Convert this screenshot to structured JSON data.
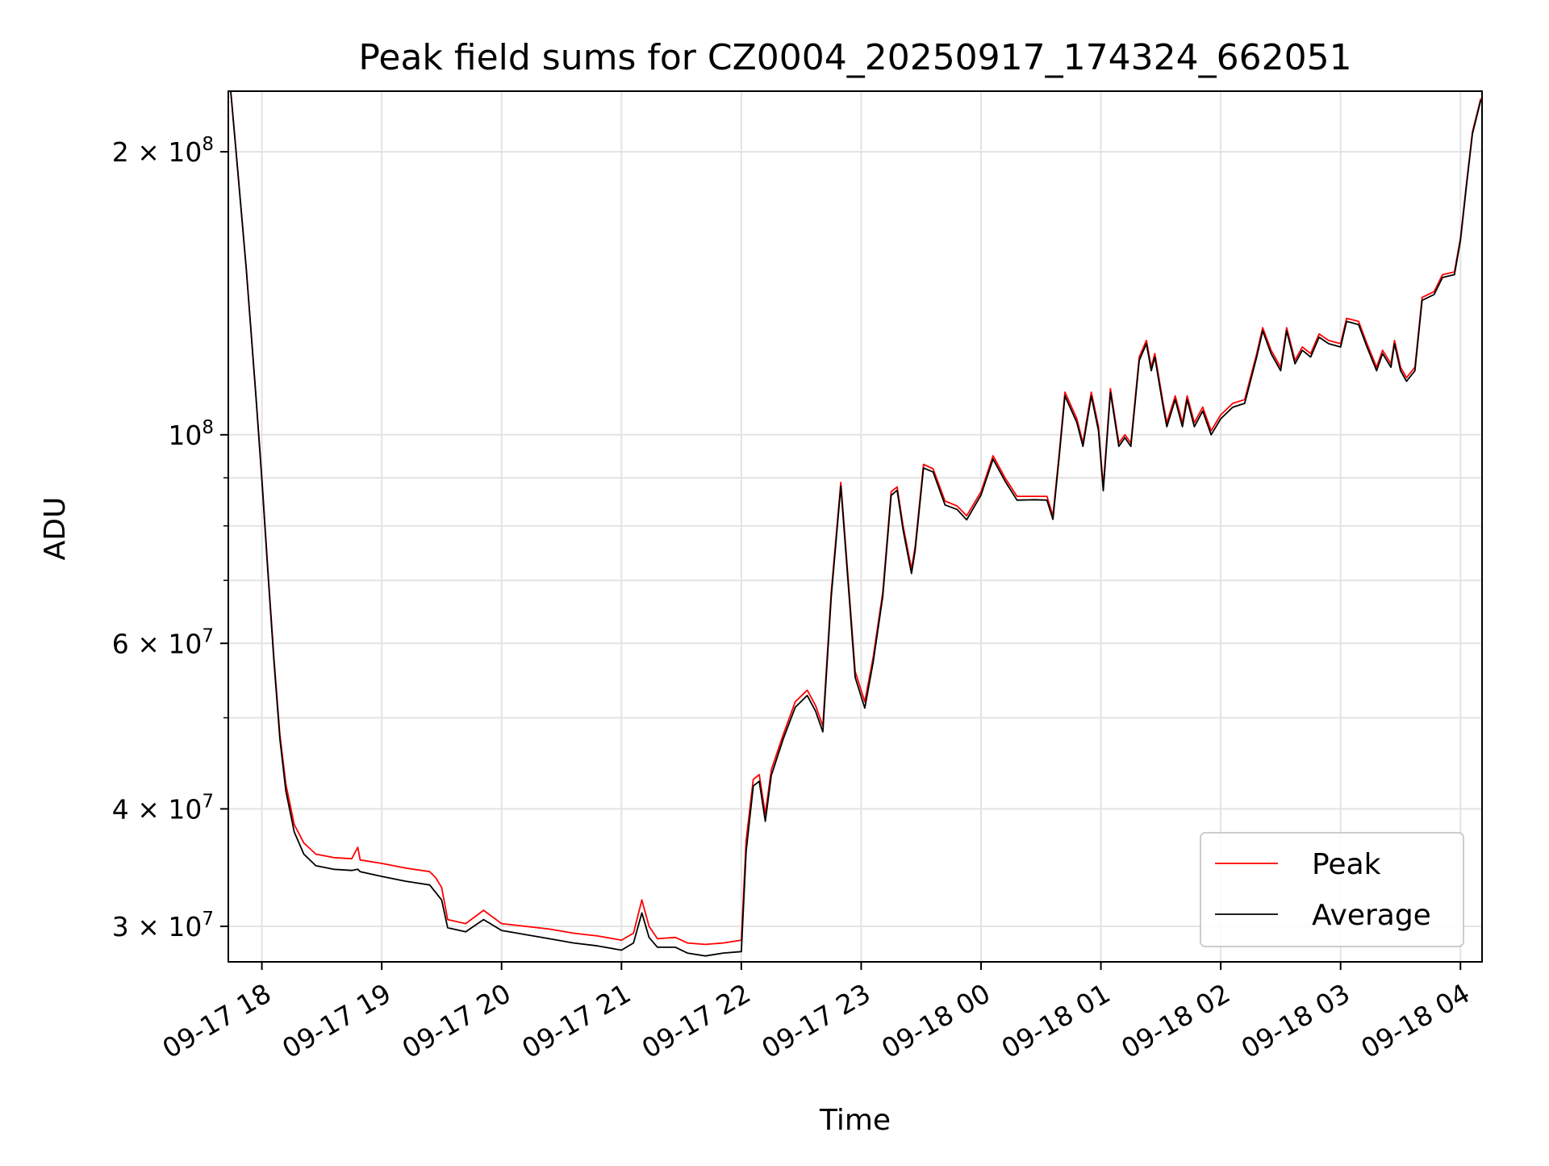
{
  "chart_data": {
    "type": "line",
    "title": "Peak field sums for CZ0004_20250917_174324_662051",
    "xlabel": "Time",
    "ylabel": "ADU",
    "y_scale": "log",
    "ylim": [
      27500000,
      232000000
    ],
    "xlim_hours": [
      17.72,
      28.18
    ],
    "x_ticks": [
      {
        "hour": 18,
        "label": "09-17 18"
      },
      {
        "hour": 19,
        "label": "09-17 19"
      },
      {
        "hour": 20,
        "label": "09-17 20"
      },
      {
        "hour": 21,
        "label": "09-17 21"
      },
      {
        "hour": 22,
        "label": "09-17 22"
      },
      {
        "hour": 23,
        "label": "09-17 23"
      },
      {
        "hour": 24,
        "label": "09-18 00"
      },
      {
        "hour": 25,
        "label": "09-18 01"
      },
      {
        "hour": 26,
        "label": "09-18 02"
      },
      {
        "hour": 27,
        "label": "09-18 03"
      },
      {
        "hour": 28,
        "label": "09-18 04"
      }
    ],
    "y_major_ticks": [
      {
        "value": 30000000,
        "mantissa": "3 × 10",
        "exp": "7"
      },
      {
        "value": 40000000,
        "mantissa": "4 × 10",
        "exp": "7"
      },
      {
        "value": 60000000,
        "mantissa": "6 × 10",
        "exp": "7"
      },
      {
        "value": 100000000,
        "mantissa": "10",
        "exp": "8"
      },
      {
        "value": 200000000,
        "mantissa": "2 × 10",
        "exp": "8"
      }
    ],
    "y_minor_grid": [
      50000000,
      70000000,
      80000000,
      90000000
    ],
    "grid": true,
    "legend_position": "bottom-right",
    "series": [
      {
        "name": "Peak",
        "color": "#ff0000",
        "points": [
          [
            17.74,
            232000000
          ],
          [
            17.8,
            190000000
          ],
          [
            17.87,
            150000000
          ],
          [
            17.95,
            110000000
          ],
          [
            18.0,
            90000000
          ],
          [
            18.05,
            72000000
          ],
          [
            18.1,
            58000000
          ],
          [
            18.15,
            48000000
          ],
          [
            18.2,
            42500000
          ],
          [
            18.27,
            38500000
          ],
          [
            18.35,
            36800000
          ],
          [
            18.45,
            35800000
          ],
          [
            18.6,
            35500000
          ],
          [
            18.75,
            35400000
          ],
          [
            18.8,
            36400000
          ],
          [
            18.82,
            35300000
          ],
          [
            19.0,
            35000000
          ],
          [
            19.2,
            34600000
          ],
          [
            19.4,
            34300000
          ],
          [
            19.45,
            33800000
          ],
          [
            19.5,
            33000000
          ],
          [
            19.55,
            30500000
          ],
          [
            19.7,
            30200000
          ],
          [
            19.85,
            31200000
          ],
          [
            20.0,
            30200000
          ],
          [
            20.2,
            30000000
          ],
          [
            20.4,
            29800000
          ],
          [
            20.6,
            29500000
          ],
          [
            20.8,
            29300000
          ],
          [
            21.0,
            29000000
          ],
          [
            21.1,
            29500000
          ],
          [
            21.17,
            32000000
          ],
          [
            21.23,
            30000000
          ],
          [
            21.3,
            29100000
          ],
          [
            21.45,
            29200000
          ],
          [
            21.55,
            28800000
          ],
          [
            21.7,
            28700000
          ],
          [
            21.85,
            28800000
          ],
          [
            22.0,
            29000000
          ],
          [
            22.04,
            37000000
          ],
          [
            22.1,
            43000000
          ],
          [
            22.15,
            43500000
          ],
          [
            22.2,
            39500000
          ],
          [
            22.25,
            44000000
          ],
          [
            22.35,
            48000000
          ],
          [
            22.45,
            52000000
          ],
          [
            22.55,
            53500000
          ],
          [
            22.62,
            51500000
          ],
          [
            22.68,
            49000000
          ],
          [
            22.75,
            68000000
          ],
          [
            22.83,
            89000000
          ],
          [
            22.9,
            68000000
          ],
          [
            22.95,
            56000000
          ],
          [
            23.03,
            52000000
          ],
          [
            23.1,
            58000000
          ],
          [
            23.18,
            68000000
          ],
          [
            23.25,
            87000000
          ],
          [
            23.3,
            88000000
          ],
          [
            23.35,
            80000000
          ],
          [
            23.42,
            72000000
          ],
          [
            23.45,
            76000000
          ],
          [
            23.52,
            93000000
          ],
          [
            23.6,
            92000000
          ],
          [
            23.7,
            85000000
          ],
          [
            23.8,
            84000000
          ],
          [
            23.88,
            82000000
          ],
          [
            24.0,
            87000000
          ],
          [
            24.1,
            95000000
          ],
          [
            24.2,
            90000000
          ],
          [
            24.3,
            86000000
          ],
          [
            24.45,
            86000000
          ],
          [
            24.55,
            86000000
          ],
          [
            24.6,
            82000000
          ],
          [
            24.65,
            95000000
          ],
          [
            24.7,
            111000000
          ],
          [
            24.8,
            104000000
          ],
          [
            24.85,
            98000000
          ],
          [
            24.92,
            111000000
          ],
          [
            24.98,
            102000000
          ],
          [
            25.02,
            88000000
          ],
          [
            25.08,
            112000000
          ],
          [
            25.15,
            98000000
          ],
          [
            25.2,
            100000000
          ],
          [
            25.25,
            98000000
          ],
          [
            25.32,
            121000000
          ],
          [
            25.38,
            126000000
          ],
          [
            25.42,
            118000000
          ],
          [
            25.45,
            122000000
          ],
          [
            25.52,
            108000000
          ],
          [
            25.55,
            103000000
          ],
          [
            25.62,
            110000000
          ],
          [
            25.68,
            103000000
          ],
          [
            25.72,
            110000000
          ],
          [
            25.78,
            103000000
          ],
          [
            25.85,
            107000000
          ],
          [
            25.92,
            101000000
          ],
          [
            26.0,
            105000000
          ],
          [
            26.1,
            108000000
          ],
          [
            26.2,
            109000000
          ],
          [
            26.3,
            122000000
          ],
          [
            26.35,
            130000000
          ],
          [
            26.42,
            123000000
          ],
          [
            26.5,
            118000000
          ],
          [
            26.55,
            130000000
          ],
          [
            26.62,
            120000000
          ],
          [
            26.68,
            124000000
          ],
          [
            26.75,
            122000000
          ],
          [
            26.82,
            128000000
          ],
          [
            26.9,
            126000000
          ],
          [
            27.0,
            125000000
          ],
          [
            27.05,
            133000000
          ],
          [
            27.15,
            132000000
          ],
          [
            27.22,
            125000000
          ],
          [
            27.3,
            118000000
          ],
          [
            27.35,
            123000000
          ],
          [
            27.42,
            119000000
          ],
          [
            27.45,
            126000000
          ],
          [
            27.5,
            118000000
          ],
          [
            27.55,
            115000000
          ],
          [
            27.62,
            118000000
          ],
          [
            27.68,
            140000000
          ],
          [
            27.78,
            142000000
          ],
          [
            27.85,
            148000000
          ],
          [
            27.95,
            149000000
          ],
          [
            28.0,
            162000000
          ],
          [
            28.05,
            185000000
          ],
          [
            28.1,
            210000000
          ],
          [
            28.17,
            228000000
          ]
        ]
      },
      {
        "name": "Average",
        "color": "#000000",
        "points": [
          [
            17.74,
            232000000
          ],
          [
            17.8,
            190000000
          ],
          [
            17.87,
            150000000
          ],
          [
            17.95,
            110000000
          ],
          [
            18.0,
            89500000
          ],
          [
            18.05,
            71500000
          ],
          [
            18.1,
            57500000
          ],
          [
            18.15,
            47500000
          ],
          [
            18.2,
            41800000
          ],
          [
            18.27,
            37800000
          ],
          [
            18.35,
            35800000
          ],
          [
            18.45,
            34800000
          ],
          [
            18.6,
            34500000
          ],
          [
            18.75,
            34400000
          ],
          [
            18.8,
            34500000
          ],
          [
            18.82,
            34300000
          ],
          [
            19.0,
            33900000
          ],
          [
            19.2,
            33500000
          ],
          [
            19.4,
            33200000
          ],
          [
            19.45,
            32600000
          ],
          [
            19.5,
            32000000
          ],
          [
            19.55,
            29900000
          ],
          [
            19.7,
            29600000
          ],
          [
            19.85,
            30500000
          ],
          [
            20.0,
            29700000
          ],
          [
            20.2,
            29400000
          ],
          [
            20.4,
            29100000
          ],
          [
            20.6,
            28800000
          ],
          [
            20.8,
            28600000
          ],
          [
            21.0,
            28300000
          ],
          [
            21.1,
            28800000
          ],
          [
            21.17,
            31000000
          ],
          [
            21.23,
            29200000
          ],
          [
            21.3,
            28500000
          ],
          [
            21.45,
            28500000
          ],
          [
            21.55,
            28100000
          ],
          [
            21.7,
            27900000
          ],
          [
            21.85,
            28100000
          ],
          [
            22.0,
            28200000
          ],
          [
            22.04,
            36000000
          ],
          [
            22.1,
            42300000
          ],
          [
            22.15,
            42800000
          ],
          [
            22.2,
            38800000
          ],
          [
            22.25,
            43400000
          ],
          [
            22.35,
            47500000
          ],
          [
            22.45,
            51300000
          ],
          [
            22.55,
            52800000
          ],
          [
            22.62,
            50800000
          ],
          [
            22.68,
            48300000
          ],
          [
            22.75,
            67200000
          ],
          [
            22.83,
            88200000
          ],
          [
            22.9,
            67200000
          ],
          [
            22.95,
            55200000
          ],
          [
            23.03,
            51200000
          ],
          [
            23.1,
            57300000
          ],
          [
            23.18,
            67300000
          ],
          [
            23.25,
            86200000
          ],
          [
            23.3,
            87300000
          ],
          [
            23.35,
            79200000
          ],
          [
            23.42,
            71200000
          ],
          [
            23.45,
            75300000
          ],
          [
            23.52,
            92200000
          ],
          [
            23.6,
            91300000
          ],
          [
            23.7,
            84200000
          ],
          [
            23.8,
            83300000
          ],
          [
            23.88,
            81200000
          ],
          [
            24.0,
            86300000
          ],
          [
            24.1,
            94200000
          ],
          [
            24.2,
            89300000
          ],
          [
            24.3,
            85200000
          ],
          [
            24.45,
            85300000
          ],
          [
            24.55,
            85200000
          ],
          [
            24.6,
            81300000
          ],
          [
            24.65,
            94200000
          ],
          [
            24.7,
            110000000
          ],
          [
            24.8,
            103000000
          ],
          [
            24.85,
            97200000
          ],
          [
            24.92,
            110000000
          ],
          [
            24.98,
            101000000
          ],
          [
            25.02,
            87200000
          ],
          [
            25.08,
            111000000
          ],
          [
            25.15,
            97200000
          ],
          [
            25.2,
            99300000
          ],
          [
            25.25,
            97200000
          ],
          [
            25.32,
            120000000
          ],
          [
            25.38,
            125000000
          ],
          [
            25.42,
            117000000
          ],
          [
            25.45,
            121000000
          ],
          [
            25.52,
            107000000
          ],
          [
            25.55,
            102000000
          ],
          [
            25.62,
            109000000
          ],
          [
            25.68,
            102000000
          ],
          [
            25.72,
            109000000
          ],
          [
            25.78,
            102000000
          ],
          [
            25.85,
            106000000
          ],
          [
            25.92,
            100000000
          ],
          [
            26.0,
            104000000
          ],
          [
            26.1,
            107000000
          ],
          [
            26.2,
            108000000
          ],
          [
            26.3,
            121000000
          ],
          [
            26.35,
            129000000
          ],
          [
            26.42,
            122000000
          ],
          [
            26.5,
            117000000
          ],
          [
            26.55,
            129000000
          ],
          [
            26.62,
            119000000
          ],
          [
            26.68,
            123000000
          ],
          [
            26.75,
            121000000
          ],
          [
            26.82,
            127000000
          ],
          [
            26.9,
            125000000
          ],
          [
            27.0,
            124000000
          ],
          [
            27.05,
            132000000
          ],
          [
            27.15,
            131000000
          ],
          [
            27.22,
            124000000
          ],
          [
            27.3,
            117000000
          ],
          [
            27.35,
            122000000
          ],
          [
            27.42,
            118000000
          ],
          [
            27.45,
            125000000
          ],
          [
            27.5,
            117000000
          ],
          [
            27.55,
            114000000
          ],
          [
            27.62,
            117000000
          ],
          [
            27.68,
            139000000
          ],
          [
            27.78,
            141000000
          ],
          [
            27.85,
            147000000
          ],
          [
            27.95,
            148000000
          ],
          [
            28.0,
            161000000
          ],
          [
            28.05,
            184000000
          ],
          [
            28.1,
            209000000
          ],
          [
            28.17,
            227000000
          ]
        ]
      }
    ]
  }
}
